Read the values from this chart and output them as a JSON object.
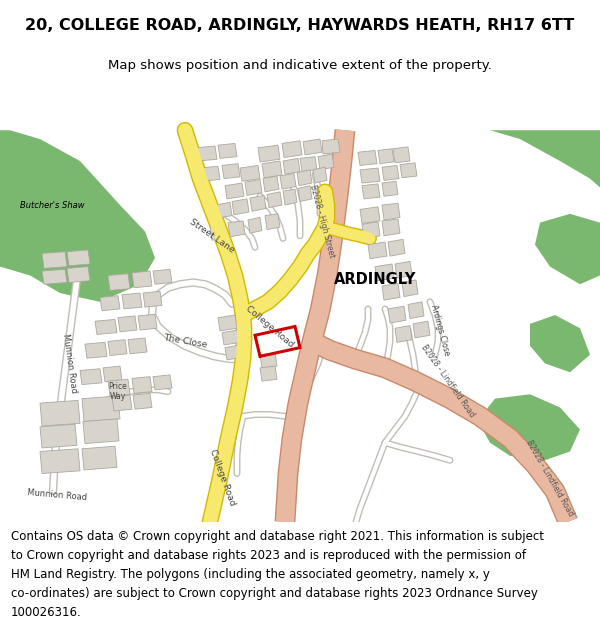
{
  "title": "20, COLLEGE ROAD, ARDINGLY, HAYWARDS HEATH, RH17 6TT",
  "subtitle": "Map shows position and indicative extent of the property.",
  "footer_lines": [
    "Contains OS data © Crown copyright and database right 2021. This information is subject",
    "to Crown copyright and database rights 2023 and is reproduced with the permission of",
    "HM Land Registry. The polygons (including the associated geometry, namely x, y",
    "co-ordinates) are subject to Crown copyright and database rights 2023 Ordnance Survey",
    "100026316."
  ],
  "map_bg": "#ffffff",
  "road_yellow": "#f7e96e",
  "road_yellow_border": "#d4b800",
  "road_salmon": "#e8b9a0",
  "road_salmon_border": "#c8896a",
  "green_color": "#7ab870",
  "building_color": "#d8d4cc",
  "building_edge": "#aaa89e",
  "property_color": "#cc0000",
  "text_dark": "#222222",
  "text_road": "#444444"
}
